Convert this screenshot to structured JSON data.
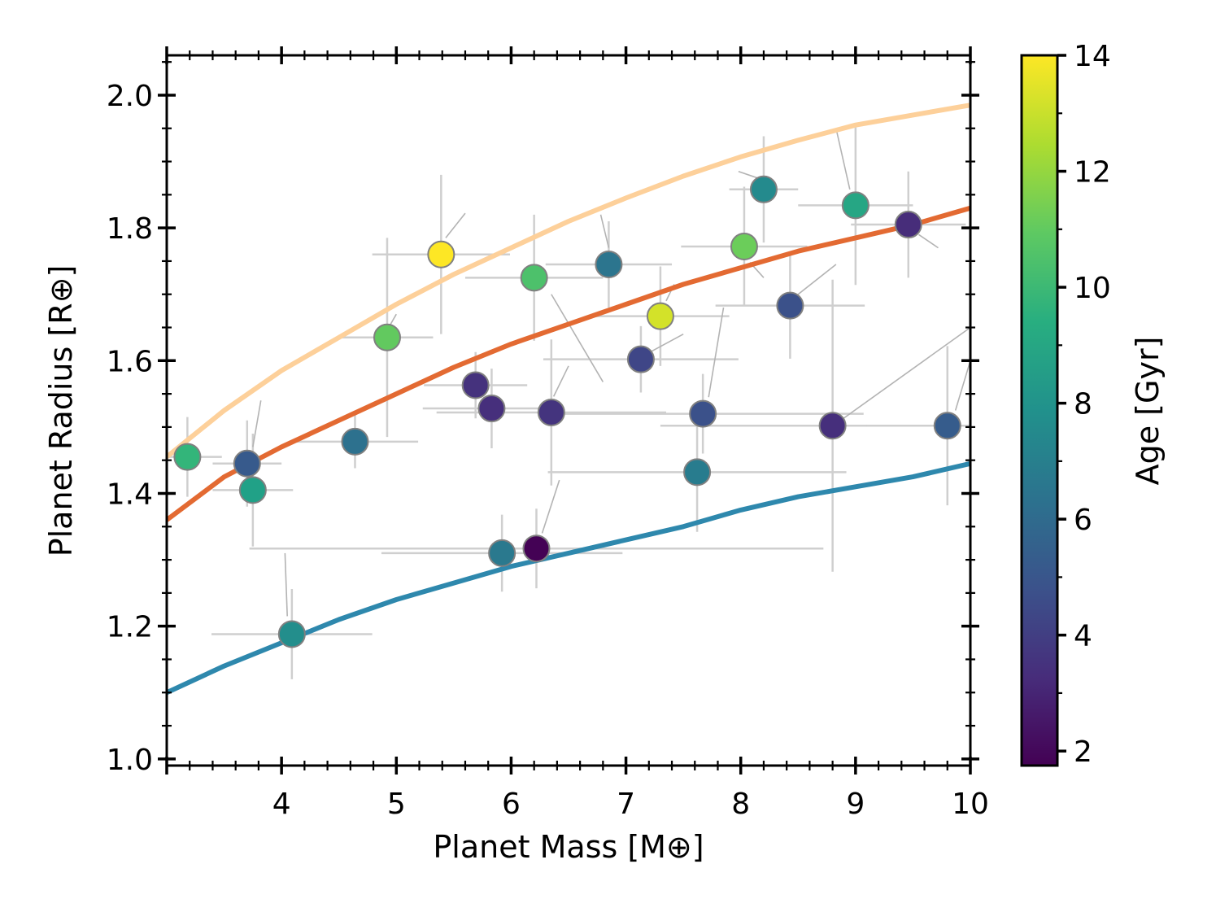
{
  "chart_data": {
    "type": "scatter",
    "xlabel": "Planet Mass [M⊕]",
    "ylabel": "Planet Radius [R⊕]",
    "colorbar_label": "Age [Gyr]",
    "xlim": [
      3.0,
      10.0
    ],
    "ylim": [
      0.99,
      2.06
    ],
    "clim": [
      1.75,
      14.0
    ],
    "x_ticks": [
      4,
      5,
      6,
      7,
      8,
      9,
      10
    ],
    "y_ticks": [
      1.0,
      1.2,
      1.4,
      1.6,
      1.8,
      2.0
    ],
    "c_ticks": [
      2,
      4,
      6,
      8,
      10,
      12,
      14
    ],
    "x_tick_labels": [
      "4",
      "5",
      "6",
      "7",
      "8",
      "9",
      "10"
    ],
    "y_tick_labels": [
      "1.0",
      "1.2",
      "1.4",
      "1.6",
      "1.8",
      "2.0"
    ],
    "c_tick_labels": [
      "2",
      "4",
      "6",
      "8",
      "10",
      "12",
      "14"
    ],
    "curves": [
      {
        "name": "upper",
        "color": "#fdd09a",
        "x": [
          3.0,
          3.5,
          4.0,
          4.5,
          5.0,
          5.5,
          6.0,
          6.5,
          7.0,
          7.5,
          8.0,
          8.5,
          9.0,
          9.5,
          10.0
        ],
        "y": [
          1.455,
          1.525,
          1.585,
          1.635,
          1.685,
          1.73,
          1.77,
          1.81,
          1.845,
          1.878,
          1.907,
          1.932,
          1.955,
          1.97,
          1.985
        ]
      },
      {
        "name": "middle",
        "color": "#e36a32",
        "x": [
          3.0,
          3.5,
          4.0,
          4.5,
          5.0,
          5.5,
          6.0,
          6.5,
          7.0,
          7.5,
          8.0,
          8.5,
          9.0,
          9.5,
          10.0
        ],
        "y": [
          1.36,
          1.425,
          1.47,
          1.51,
          1.55,
          1.59,
          1.625,
          1.655,
          1.685,
          1.715,
          1.74,
          1.765,
          1.785,
          1.805,
          1.83
        ]
      },
      {
        "name": "lower",
        "color": "#2e88ad",
        "x": [
          3.0,
          3.5,
          4.0,
          4.5,
          5.0,
          5.5,
          6.0,
          6.5,
          7.0,
          7.5,
          8.0,
          8.5,
          9.0,
          9.5,
          10.0
        ],
        "y": [
          1.1,
          1.14,
          1.175,
          1.21,
          1.24,
          1.265,
          1.29,
          1.31,
          1.33,
          1.35,
          1.375,
          1.395,
          1.41,
          1.425,
          1.445
        ]
      }
    ],
    "points": [
      {
        "x": 3.18,
        "y": 1.455,
        "age": 9.8,
        "xerr": 0.3,
        "yerr": 0.06
      },
      {
        "x": 3.7,
        "y": 1.445,
        "age": 5.2,
        "xerr": 0.3,
        "yerr": 0.065
      },
      {
        "x": 3.75,
        "y": 1.405,
        "age": 8.7,
        "xerr": 0.35,
        "yerr": 0.085
      },
      {
        "x": 4.09,
        "y": 1.188,
        "age": 7.8,
        "xerr": 0.7,
        "yerr": 0.068
      },
      {
        "x": 4.64,
        "y": 1.478,
        "age": 6.3,
        "xerr": 0.55,
        "yerr": 0.04
      },
      {
        "x": 4.92,
        "y": 1.635,
        "age": 11.0,
        "xerr": 0.4,
        "yerr": 0.15
      },
      {
        "x": 5.39,
        "y": 1.76,
        "age": 14.0,
        "xerr": 0.6,
        "yerr": 0.12
      },
      {
        "x": 5.69,
        "y": 1.563,
        "age": 3.5,
        "xerr": 0.45,
        "yerr": 0.05
      },
      {
        "x": 5.83,
        "y": 1.528,
        "age": 3.4,
        "xerr": 0.6,
        "yerr": 0.06
      },
      {
        "x": 5.92,
        "y": 1.31,
        "age": 6.7,
        "xerr": 1.05,
        "yerr": 0.058
      },
      {
        "x": 6.2,
        "y": 1.725,
        "age": 10.5,
        "xerr": 0.6,
        "yerr": 0.095
      },
      {
        "x": 6.22,
        "y": 1.317,
        "age": 1.8,
        "xerr": 2.5,
        "yerr": 0.06
      },
      {
        "x": 6.35,
        "y": 1.522,
        "age": 3.6,
        "xerr": 1.0,
        "yerr": 0.11
      },
      {
        "x": 6.85,
        "y": 1.745,
        "age": 6.5,
        "xerr": 0.55,
        "yerr": 0.065
      },
      {
        "x": 7.13,
        "y": 1.602,
        "age": 4.3,
        "xerr": 0.85,
        "yerr": 0.05
      },
      {
        "x": 7.3,
        "y": 1.667,
        "age": 13.2,
        "xerr": 0.6,
        "yerr": 0.075
      },
      {
        "x": 7.62,
        "y": 1.432,
        "age": 6.9,
        "xerr": 1.3,
        "yerr": 0.09
      },
      {
        "x": 7.67,
        "y": 1.52,
        "age": 4.8,
        "xerr": 1.4,
        "yerr": 0.06
      },
      {
        "x": 8.03,
        "y": 1.772,
        "age": 11.2,
        "xerr": 0.55,
        "yerr": 0.09
      },
      {
        "x": 8.2,
        "y": 1.858,
        "age": 7.6,
        "xerr": 0.3,
        "yerr": 0.08
      },
      {
        "x": 8.43,
        "y": 1.683,
        "age": 4.8,
        "xerr": 0.65,
        "yerr": 0.08
      },
      {
        "x": 8.8,
        "y": 1.502,
        "age": 3.4,
        "xerr": 1.5,
        "yerr": 0.22
      },
      {
        "x": 9.0,
        "y": 1.834,
        "age": 9.0,
        "xerr": 0.5,
        "yerr": 0.12
      },
      {
        "x": 9.46,
        "y": 1.805,
        "age": 3.3,
        "xerr": 0.5,
        "yerr": 0.08
      },
      {
        "x": 9.8,
        "y": 1.502,
        "age": 5.3,
        "xerr": 0.7,
        "yerr": 0.12
      }
    ],
    "leader_lines": [
      {
        "from": [
          3.75,
          1.47
        ],
        "to": [
          3.82,
          1.54
        ]
      },
      {
        "from": [
          4.05,
          1.215
        ],
        "to": [
          4.03,
          1.31
        ]
      },
      {
        "from": [
          4.95,
          1.655
        ],
        "to": [
          5.0,
          1.67
        ]
      },
      {
        "from": [
          5.43,
          1.785
        ],
        "to": [
          5.6,
          1.822
        ]
      },
      {
        "from": [
          6.27,
          1.34
        ],
        "to": [
          6.42,
          1.42
        ]
      },
      {
        "from": [
          6.37,
          1.546
        ],
        "to": [
          6.5,
          1.592
        ]
      },
      {
        "from": [
          6.35,
          1.7
        ],
        "to": [
          6.8,
          1.568
        ]
      },
      {
        "from": [
          6.85,
          1.77
        ],
        "to": [
          6.78,
          1.82
        ]
      },
      {
        "from": [
          7.2,
          1.612
        ],
        "to": [
          7.5,
          1.64
        ]
      },
      {
        "from": [
          7.35,
          1.69
        ],
        "to": [
          7.42,
          1.715
        ]
      },
      {
        "from": [
          7.72,
          1.545
        ],
        "to": [
          7.85,
          1.68
        ]
      },
      {
        "from": [
          8.08,
          1.748
        ],
        "to": [
          8.2,
          1.725
        ]
      },
      {
        "from": [
          8.15,
          1.875
        ],
        "to": [
          7.98,
          1.885
        ]
      },
      {
        "from": [
          8.5,
          1.7
        ],
        "to": [
          8.83,
          1.745
        ]
      },
      {
        "from": [
          8.87,
          1.51
        ],
        "to": [
          10.0,
          1.65
        ]
      },
      {
        "from": [
          8.95,
          1.858
        ],
        "to": [
          8.83,
          1.95
        ]
      },
      {
        "from": [
          9.55,
          1.79
        ],
        "to": [
          9.72,
          1.77
        ]
      },
      {
        "from": [
          9.87,
          1.525
        ],
        "to": [
          10.0,
          1.6
        ]
      }
    ]
  }
}
